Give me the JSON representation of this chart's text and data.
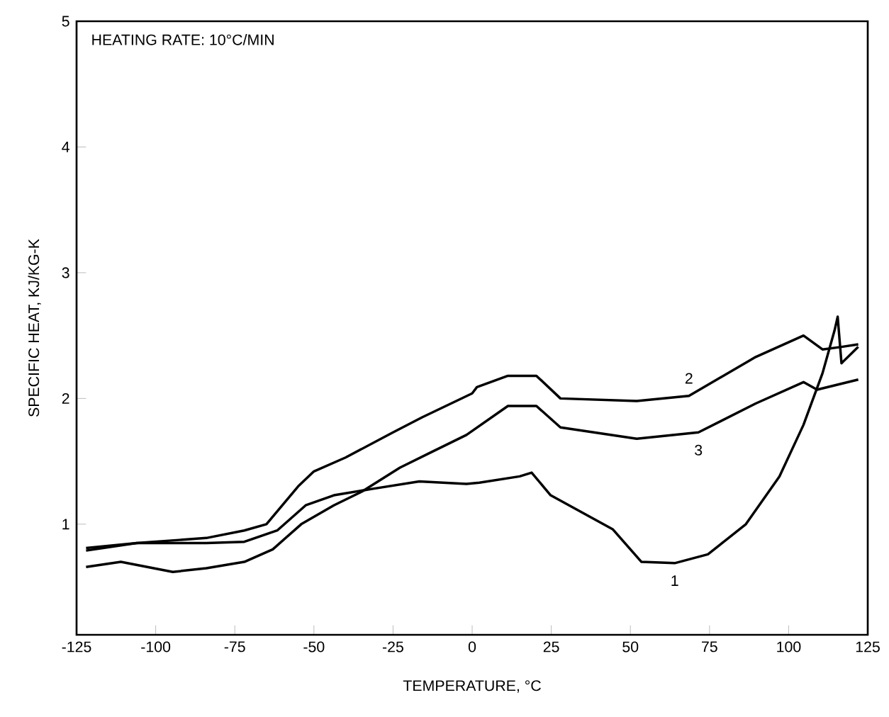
{
  "chart_data": {
    "type": "line",
    "xlabel": "TEMPERATURE, °C",
    "ylabel": "SPECIFIC HEAT, KJ/KG-K",
    "xlim": [
      -125,
      125
    ],
    "ylim": [
      0.12,
      5
    ],
    "xticks": [
      -125,
      -100,
      -75,
      -50,
      -25,
      0,
      25,
      50,
      75,
      100,
      125
    ],
    "yticks": [
      1,
      2,
      3,
      4,
      5
    ],
    "tick_labels": "xy",
    "grid": false,
    "legend": false,
    "marker": "none",
    "line_style": "solid",
    "annotations": [
      "HEATING RATE:  10°C/MIN"
    ],
    "series": [
      {
        "name": "1",
        "color": "#000000",
        "x": [
          -122,
          -106,
          -84,
          -72,
          -61.6,
          -52.6,
          -43.7,
          -31.7,
          -16.7,
          -1.8,
          2.3,
          15,
          18.8,
          24.8,
          44.4,
          53.5,
          64,
          74.5,
          86.5,
          97.1,
          104.7,
          110.7,
          114.5,
          115.5,
          116.7,
          117.5,
          122
        ],
        "values": [
          0.79,
          0.85,
          0.85,
          0.86,
          0.95,
          1.15,
          1.23,
          1.28,
          1.34,
          1.32,
          1.33,
          1.38,
          1.41,
          1.23,
          0.96,
          0.7,
          0.69,
          0.76,
          1.0,
          1.38,
          1.79,
          2.2,
          2.54,
          2.65,
          2.28,
          2.3,
          2.41
        ]
      },
      {
        "name": "2",
        "color": "#000000",
        "x": [
          -122,
          -106,
          -84,
          -72,
          -65,
          -55,
          -50,
          -40,
          -25,
          -15.8,
          0,
          1.5,
          11.3,
          20.3,
          27.9,
          52,
          68.5,
          89.6,
          104.7,
          110.7,
          116.7,
          122
        ],
        "values": [
          0.81,
          0.85,
          0.89,
          0.95,
          1.0,
          1.3,
          1.42,
          1.53,
          1.73,
          1.85,
          2.04,
          2.09,
          2.18,
          2.18,
          2.0,
          1.98,
          2.02,
          2.33,
          2.5,
          2.39,
          2.41,
          2.43
        ]
      },
      {
        "name": "3",
        "color": "#000000",
        "x": [
          -122,
          -111,
          -94.6,
          -84,
          -72,
          -63,
          -54,
          -43.7,
          -34.8,
          -22.8,
          -12.3,
          -1.8,
          11.3,
          20.3,
          27.9,
          52,
          71.5,
          89.6,
          104.7,
          109,
          122
        ],
        "values": [
          0.66,
          0.7,
          0.62,
          0.65,
          0.7,
          0.8,
          1.0,
          1.15,
          1.26,
          1.45,
          1.58,
          1.71,
          1.94,
          1.94,
          1.77,
          1.68,
          1.73,
          1.96,
          2.13,
          2.07,
          2.15
        ]
      }
    ]
  }
}
